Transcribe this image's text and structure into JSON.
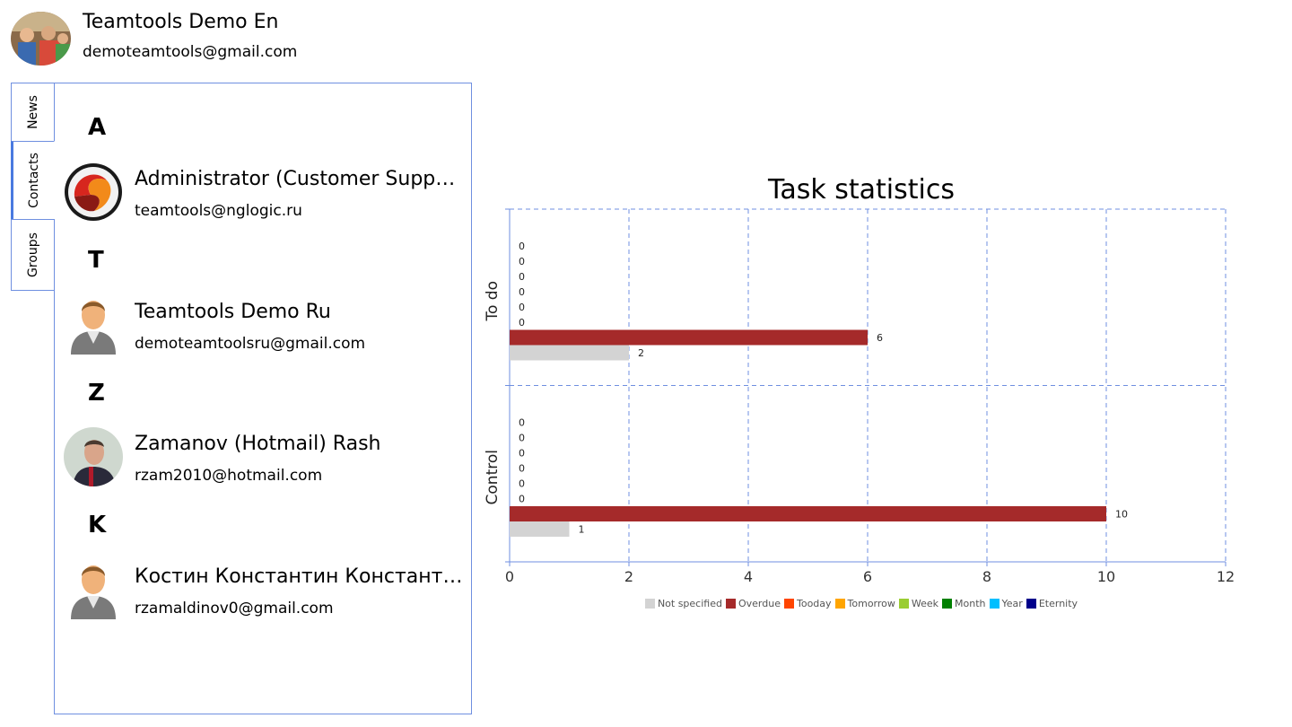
{
  "user": {
    "name": "Teamtools Demo En",
    "email": "demoteamtools@gmail.com"
  },
  "tabs": [
    {
      "label": "News",
      "active": false
    },
    {
      "label": "Contacts",
      "active": true
    },
    {
      "label": "Groups",
      "active": false
    }
  ],
  "contacts": [
    {
      "letter": "A",
      "name": "Administrator (Customer Support)",
      "email": "teamtools@nglogic.ru",
      "avatar": "logo-avatar"
    },
    {
      "letter": "T",
      "name": "Teamtools Demo Ru",
      "email": "demoteamtoolsru@gmail.com",
      "avatar": "default-person-avatar"
    },
    {
      "letter": "Z",
      "name": "Zamanov (Hotmail) Rash",
      "email": "rzam2010@hotmail.com",
      "avatar": "photo-avatar"
    },
    {
      "letter": "K",
      "name": "Костин Константин Константинович",
      "email": "rzamaldinov0@gmail.com",
      "avatar": "default-person-avatar"
    }
  ],
  "chart_data": {
    "type": "bar",
    "orientation": "horizontal",
    "title": "Task statistics",
    "categories": [
      "To do",
      "Control"
    ],
    "series": [
      {
        "name": "Not specified",
        "color": "#d3d3d3",
        "values": [
          2,
          1
        ]
      },
      {
        "name": "Overdue",
        "color": "#a52a2a",
        "values": [
          6,
          10
        ]
      },
      {
        "name": "Tooday",
        "color": "#ff4500",
        "values": [
          0,
          0
        ]
      },
      {
        "name": "Tomorrow",
        "color": "#ffa500",
        "values": [
          0,
          0
        ]
      },
      {
        "name": "Week",
        "color": "#9acd32",
        "values": [
          0,
          0
        ]
      },
      {
        "name": "Month",
        "color": "#008000",
        "values": [
          0,
          0
        ]
      },
      {
        "name": "Year",
        "color": "#00bfff",
        "values": [
          0,
          0
        ]
      },
      {
        "name": "Eternity",
        "color": "#00008b",
        "values": [
          0,
          0
        ]
      }
    ],
    "xlim": [
      0,
      12
    ],
    "xticks": [
      0,
      2,
      4,
      6,
      8,
      10,
      12
    ],
    "grid": true,
    "legend_position": "bottom"
  }
}
